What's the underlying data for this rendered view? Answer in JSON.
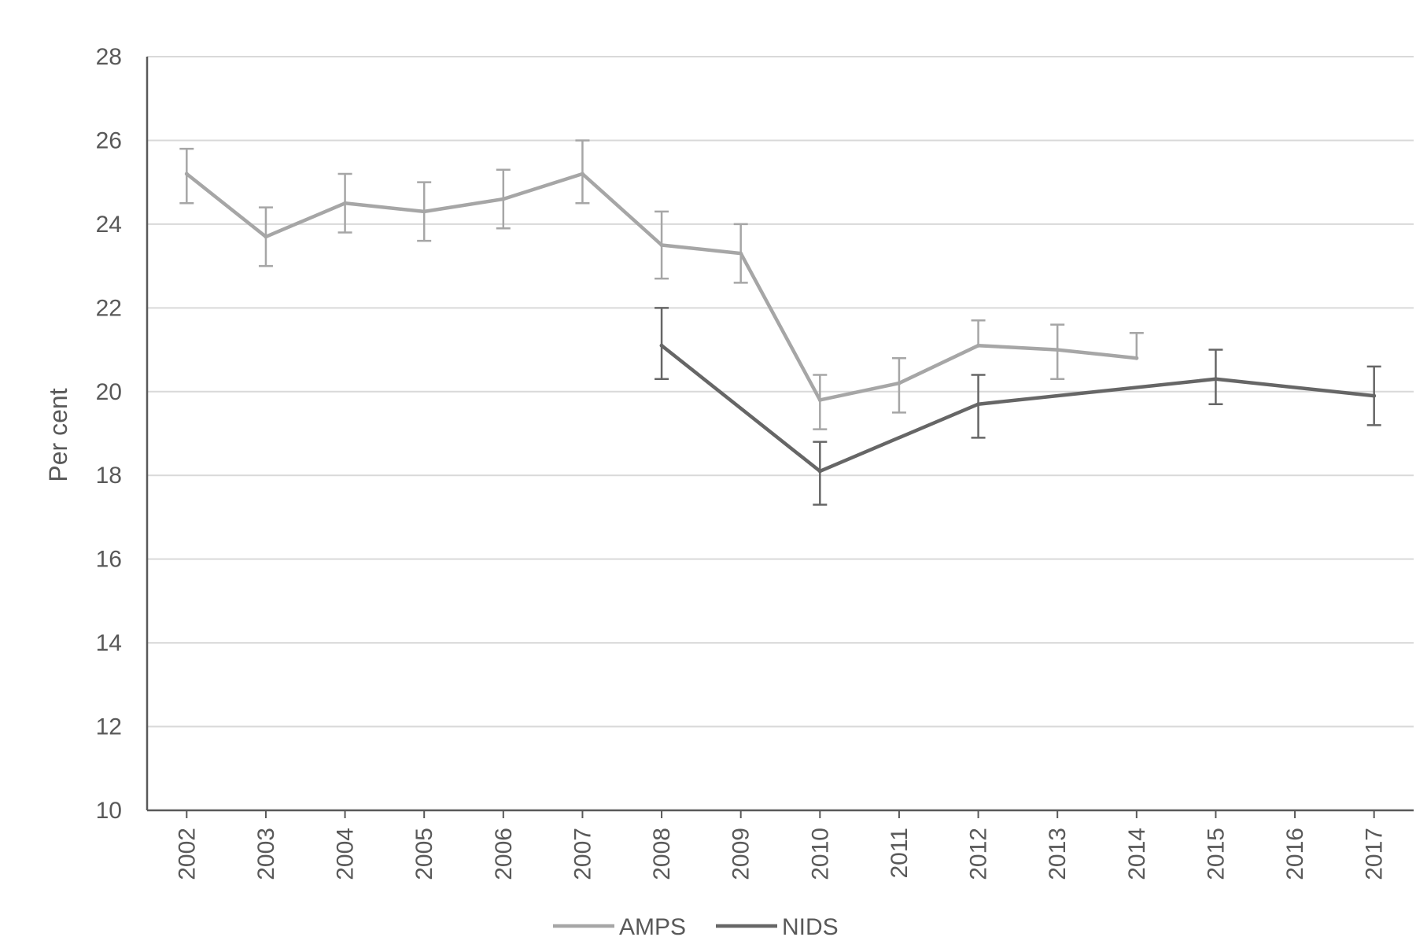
{
  "chart_data": {
    "type": "line",
    "ylabel": "Per cent",
    "xlabel": "",
    "ylim": [
      10,
      28
    ],
    "y_ticks": [
      10,
      12,
      14,
      16,
      18,
      20,
      22,
      24,
      26,
      28
    ],
    "categories": [
      "2002",
      "2003",
      "2004",
      "2005",
      "2006",
      "2007",
      "2008",
      "2009",
      "2010",
      "2011",
      "2012",
      "2013",
      "2014",
      "2015",
      "2016",
      "2017"
    ],
    "grid": true,
    "legend_position": "bottom",
    "series": [
      {
        "name": "AMPS",
        "color": "#a6a6a6",
        "values": [
          25.2,
          23.7,
          24.5,
          24.3,
          24.6,
          25.2,
          23.5,
          23.3,
          19.8,
          20.2,
          21.1,
          21.0,
          20.8,
          null,
          null,
          null
        ],
        "error_low": [
          24.5,
          23.0,
          23.8,
          23.6,
          23.9,
          24.5,
          22.7,
          22.6,
          19.1,
          19.5,
          null,
          20.3,
          null,
          null,
          null,
          null
        ],
        "error_high": [
          25.8,
          24.4,
          25.2,
          25.0,
          25.3,
          26.0,
          24.3,
          24.0,
          20.4,
          20.8,
          21.7,
          21.6,
          21.4,
          null,
          null,
          null
        ]
      },
      {
        "name": "NIDS",
        "color": "#666666",
        "values": [
          null,
          null,
          null,
          null,
          null,
          null,
          21.1,
          null,
          18.1,
          null,
          19.7,
          null,
          null,
          20.3,
          null,
          19.9
        ],
        "error_low": [
          null,
          null,
          null,
          null,
          null,
          null,
          20.3,
          null,
          17.3,
          null,
          18.9,
          null,
          null,
          19.7,
          null,
          19.2
        ],
        "error_high": [
          null,
          null,
          null,
          null,
          null,
          null,
          22.0,
          null,
          18.8,
          null,
          20.4,
          null,
          null,
          21.0,
          null,
          20.6
        ]
      }
    ]
  }
}
